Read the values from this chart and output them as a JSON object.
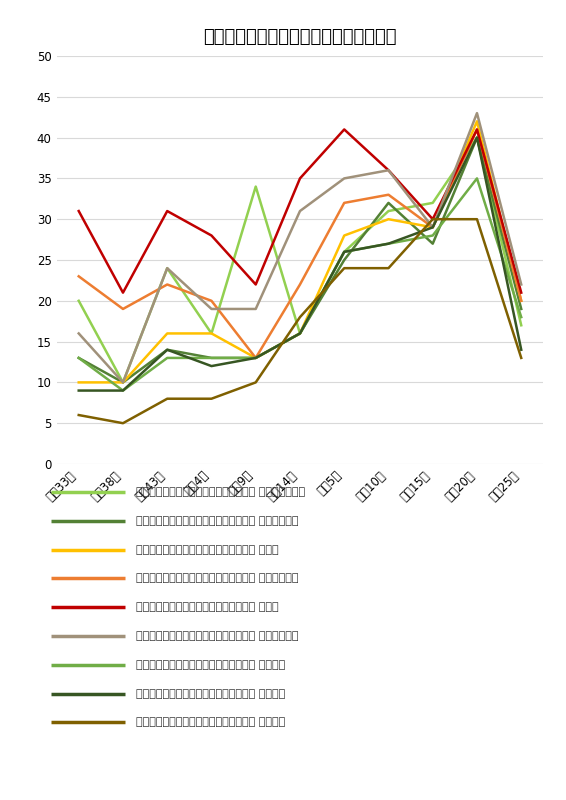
{
  "title": "埼玉県郡別春蚕農家一戸あたりの収繭量",
  "x_labels": [
    "明治33年",
    "明治38年",
    "明治43年",
    "大正4年",
    "大正9年",
    "大正14年",
    "昭和5年",
    "昭和10年",
    "昭和15年",
    "昭和20年",
    "昭和25年"
  ],
  "ylim": [
    0,
    50
  ],
  "yticks": [
    0,
    5,
    10,
    15,
    20,
    25,
    30,
    35,
    40,
    45,
    50
  ],
  "series": [
    {
      "label": "埼玉県郡別春蚕農家一戸あたりの収繭量 北足立郡（市）",
      "color": "#92d050",
      "linewidth": 1.8,
      "values": [
        20,
        10,
        24,
        16,
        34,
        16,
        26,
        31,
        32,
        40,
        17
      ]
    },
    {
      "label": "埼玉県郡別春蚕農家一戸あたりの収繭量 入間郡（市）",
      "color": "#538135",
      "linewidth": 1.8,
      "values": [
        13,
        10,
        14,
        13,
        13,
        16,
        25,
        32,
        27,
        40,
        19
      ]
    },
    {
      "label": "埼玉県郡別春蚕農家一戸あたりの収繭量 比企郡",
      "color": "#ffc000",
      "linewidth": 1.8,
      "values": [
        10,
        10,
        16,
        16,
        13,
        16,
        28,
        30,
        29,
        42,
        20
      ]
    },
    {
      "label": "埼玉県郡別春蚕農家一戸あたりの収繭量 秩父郡（市）",
      "color": "#ed7d31",
      "linewidth": 1.8,
      "values": [
        23,
        19,
        22,
        20,
        13,
        22,
        32,
        33,
        29,
        41,
        20
      ]
    },
    {
      "label": "埼玉県郡別春蚕農家一戸あたりの収繭量 児玉郡",
      "color": "#c00000",
      "linewidth": 1.8,
      "values": [
        31,
        21,
        31,
        28,
        22,
        35,
        41,
        36,
        30,
        41,
        21
      ]
    },
    {
      "label": "埼玉県郡別春蚕農家一戸あたりの収繭量 大里郡（市）",
      "color": "#a0917a",
      "linewidth": 1.8,
      "values": [
        16,
        10,
        24,
        19,
        19,
        31,
        35,
        36,
        29,
        43,
        22
      ]
    },
    {
      "label": "埼玉県郡別春蚕農家一戸あたりの収繭量 北埼玉郡",
      "color": "#70ad47",
      "linewidth": 1.8,
      "values": [
        13,
        9,
        13,
        13,
        13,
        16,
        26,
        27,
        28,
        35,
        18
      ]
    },
    {
      "label": "埼玉県郡別春蚕農家一戸あたりの収繭量 南埼玉郡",
      "color": "#375623",
      "linewidth": 1.8,
      "values": [
        9,
        9,
        14,
        12,
        13,
        16,
        26,
        27,
        29,
        40,
        14
      ]
    },
    {
      "label": "埼玉県郡別春蚕農家一戸あたりの収繭量 北葛飾郡",
      "color": "#7f6000",
      "linewidth": 1.8,
      "values": [
        6,
        5,
        8,
        8,
        10,
        18,
        24,
        24,
        30,
        30,
        13
      ]
    }
  ],
  "background_color": "#ffffff",
  "grid_color": "#d9d9d9",
  "title_fontsize": 13,
  "legend_fontsize": 8.0,
  "tick_fontsize": 8.5
}
